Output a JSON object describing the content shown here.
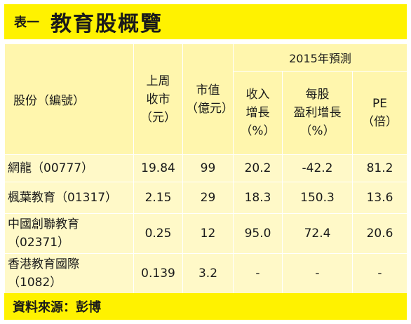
{
  "title": {
    "prefix": "表一",
    "main": "教育股概覽"
  },
  "table": {
    "group_header": "2015年預測",
    "headers": {
      "name": "股份（編號）",
      "close_line1": "上周",
      "close_line2": "收市",
      "close_line3": "（元）",
      "mcap_line1": "市值",
      "mcap_line2": "（億元）",
      "rev_line1": "收入",
      "rev_line2": "增長",
      "rev_line3": "（%）",
      "eps_line1": "每股",
      "eps_line2": "盈利增長",
      "eps_line3": "（%）",
      "pe_line1": "PE",
      "pe_line2": "（倍）"
    },
    "rows": [
      {
        "name_line1": "網龍（00777）",
        "name_line2": "",
        "close": "19.84",
        "mcap": "99",
        "rev": "20.2",
        "eps": "-42.2",
        "pe": "81.2"
      },
      {
        "name_line1": "楓葉教育（01317）",
        "name_line2": "",
        "close": "2.15",
        "mcap": "29",
        "rev": "18.3",
        "eps": "150.3",
        "pe": "13.6"
      },
      {
        "name_line1": "中國創聯教育",
        "name_line2": "（02371）",
        "close": "0.25",
        "mcap": "12",
        "rev": "95.0",
        "eps": "72.4",
        "pe": "20.6"
      },
      {
        "name_line1": "香港教育國際",
        "name_line2": "（1082）",
        "close": "0.139",
        "mcap": "3.2",
        "rev": "-",
        "eps": "-",
        "pe": "-"
      }
    ]
  },
  "source": "資料來源：彭博",
  "colors": {
    "title_bg": "#fff200",
    "cell_bg": "#fff9c8"
  }
}
